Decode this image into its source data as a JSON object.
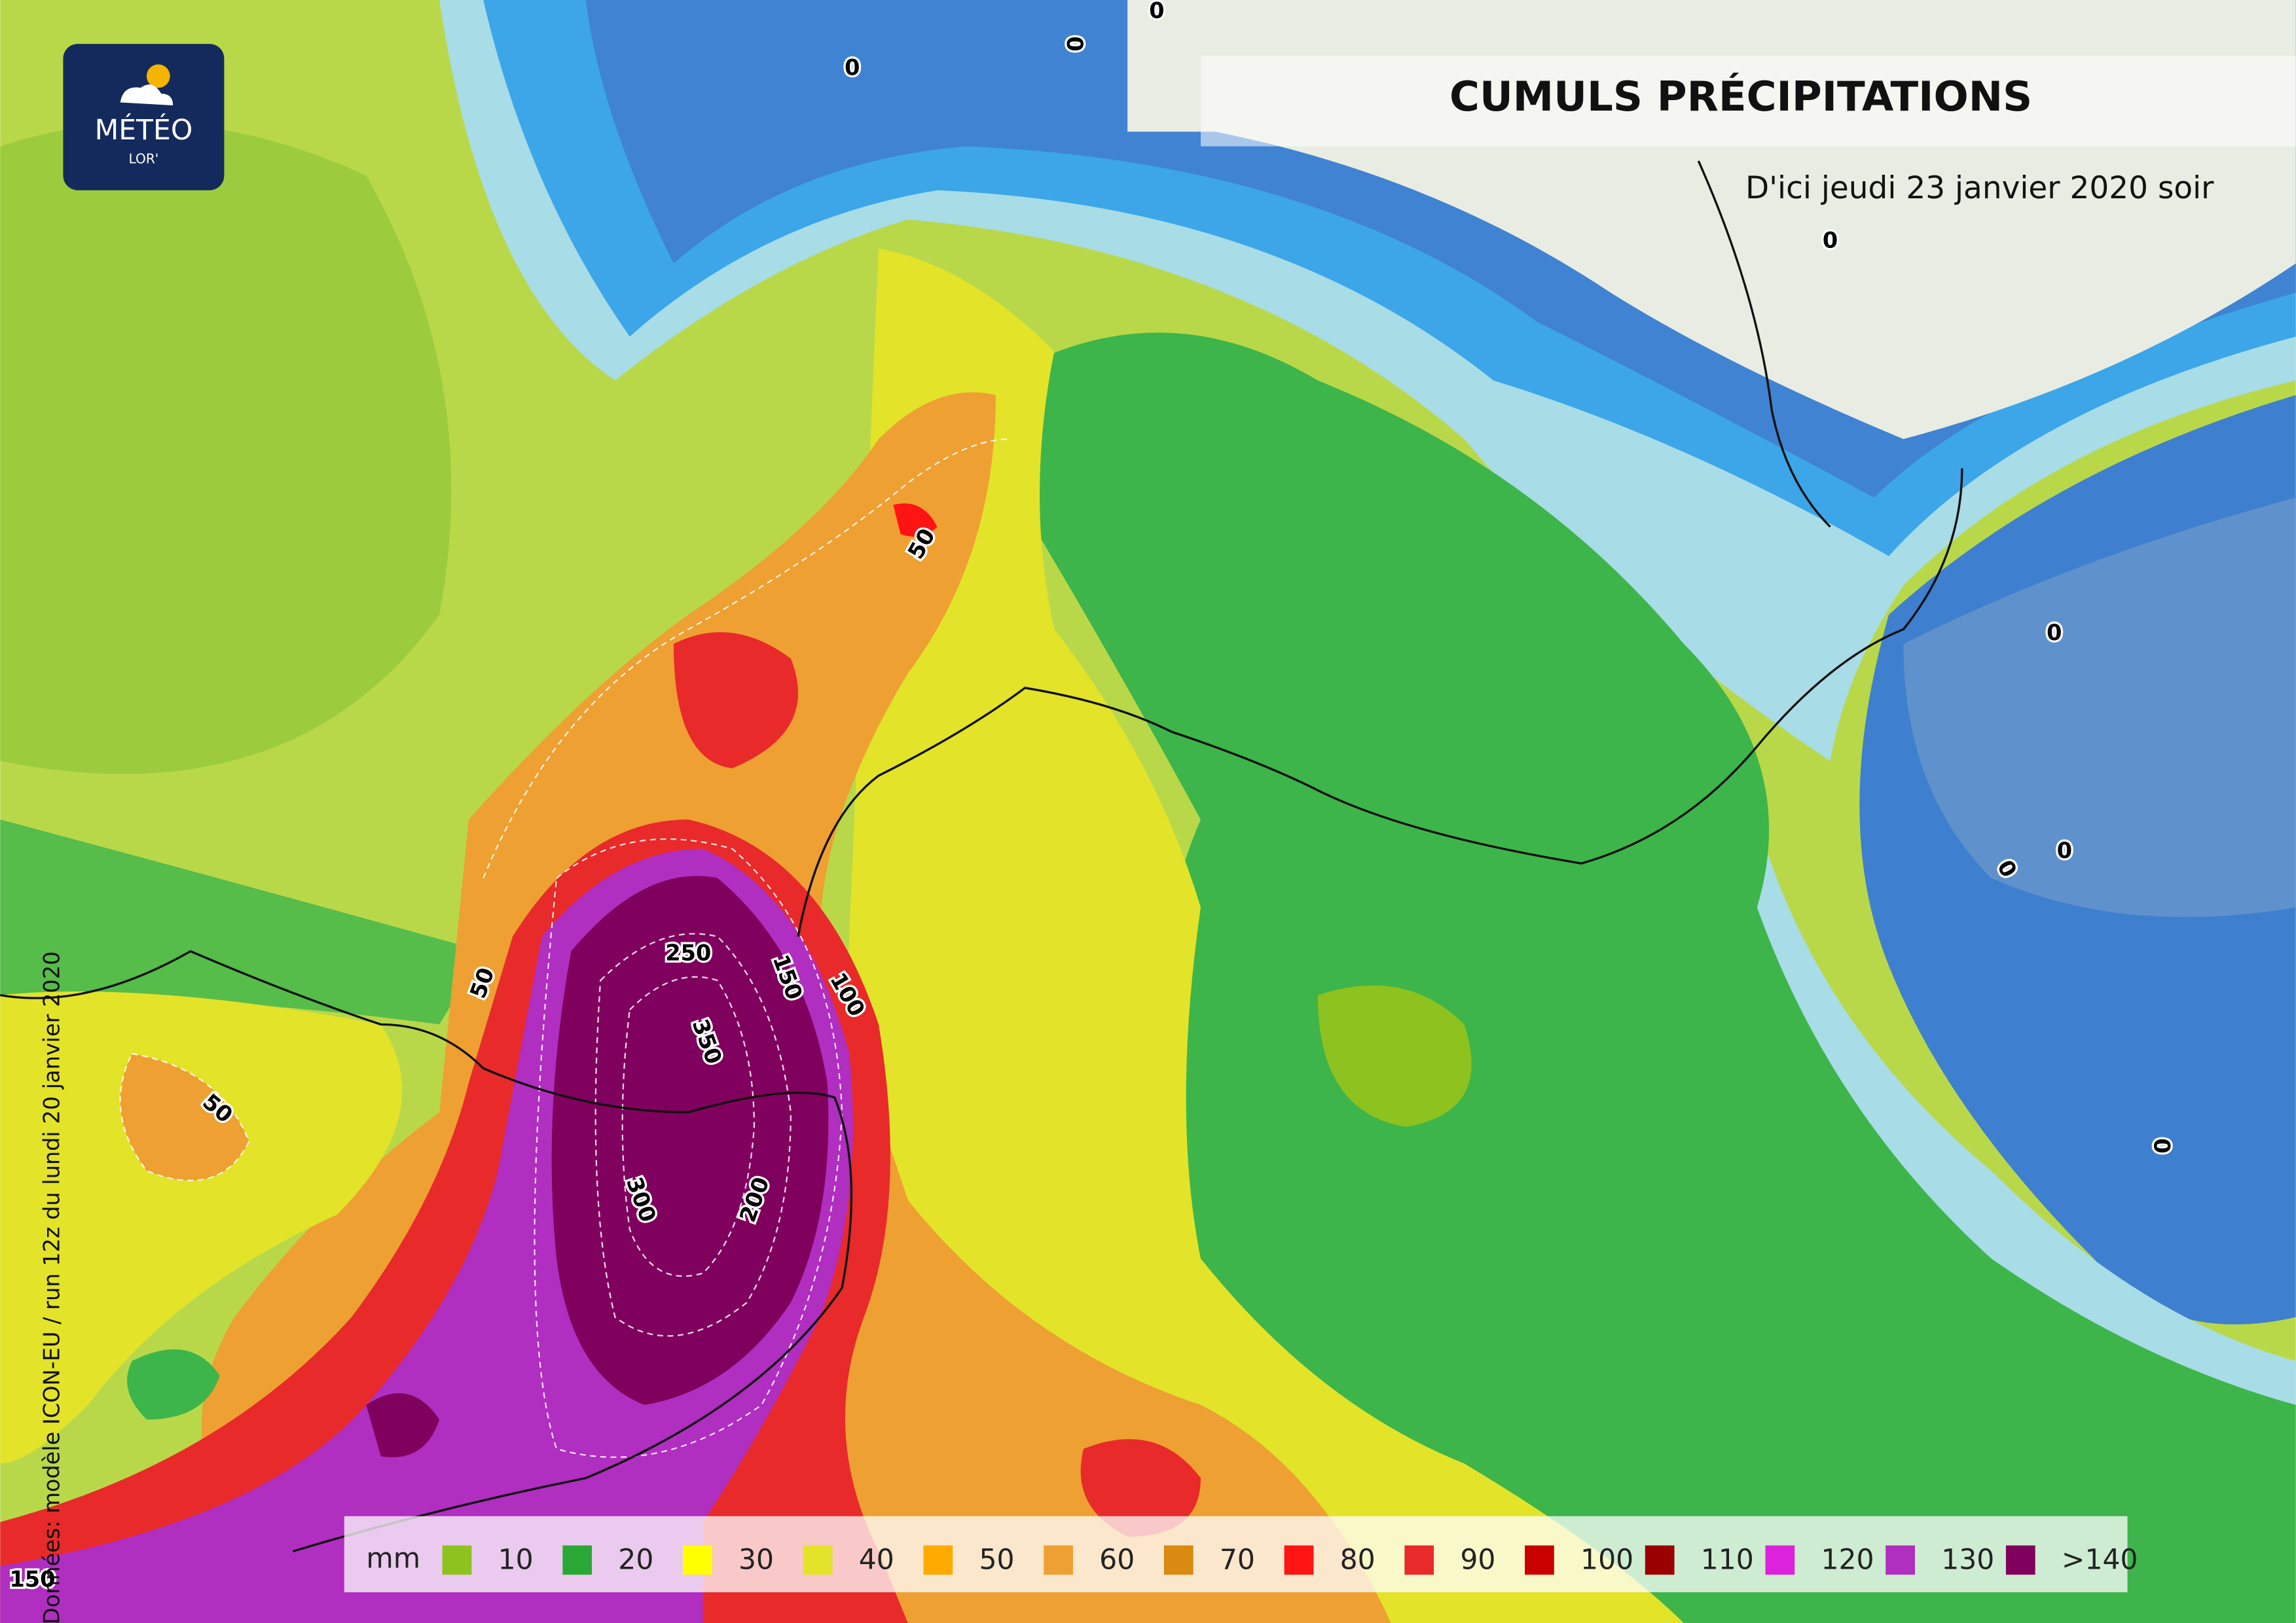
{
  "logo": {
    "brand": "MÉTÉO",
    "sub": "LOR'"
  },
  "header": {
    "title": "CUMULS PRÉCIPITATIONS",
    "subtitle": "D'ici jeudi 23 janvier 2020 soir"
  },
  "source": "Données: modèle ICON-EU / run 12z du lundi 20 janvier 2020",
  "legend": {
    "unit": "mm",
    "items": [
      {
        "label": "10",
        "color": "#8dc21f"
      },
      {
        "label": "20",
        "color": "#2aa836"
      },
      {
        "label": "30",
        "color": "#ffff00"
      },
      {
        "label": "40",
        "color": "#e3e32a"
      },
      {
        "label": "50",
        "color": "#ffaa00"
      },
      {
        "label": "60",
        "color": "#eea032"
      },
      {
        "label": "70",
        "color": "#d98a10"
      },
      {
        "label": "80",
        "color": "#ff1414"
      },
      {
        "label": "90",
        "color": "#e82a2a"
      },
      {
        "label": "100",
        "color": "#c80000"
      },
      {
        "label": "110",
        "color": "#9a0000"
      },
      {
        "label": "120",
        "color": "#dd22dd"
      },
      {
        "label": "130",
        "color": "#b02ec0"
      },
      {
        "label": ">140",
        "color": "#80005e"
      }
    ]
  },
  "contour_labels": [
    "0",
    "0",
    "0",
    "0",
    "0",
    "0",
    "0",
    "0",
    "50",
    "50",
    "50",
    "250",
    "150",
    "100",
    "350",
    "300",
    "200",
    "150"
  ]
}
